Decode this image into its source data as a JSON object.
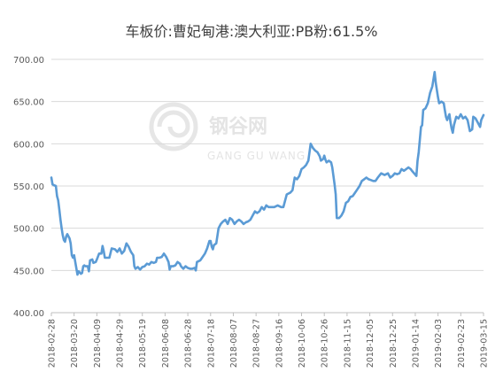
{
  "chart_data": {
    "type": "line",
    "title": "车板价:曹妃甸港:澳大利亚:PB粉:61.5%",
    "xlabel": "",
    "ylabel": "",
    "ylim": [
      400,
      700
    ],
    "yticks": [
      "400.00",
      "450.00",
      "500.00",
      "550.00",
      "600.00",
      "650.00",
      "700.00"
    ],
    "xticks": [
      "2018-02-28",
      "2018-03-20",
      "2018-04-09",
      "2018-04-29",
      "2018-05-19",
      "2018-06-08",
      "2018-06-28",
      "2018-07-18",
      "2018-08-07",
      "2018-08-27",
      "2018-09-16",
      "2018-10-06",
      "2018-10-26",
      "2018-11-15",
      "2018-12-05",
      "2018-12-25",
      "2019-01-14",
      "2019-02-03",
      "2019-02-23",
      "2019-03-15"
    ],
    "grid": "horizontal",
    "line_color": "#5b9bd5",
    "series": [
      {
        "values": [
          [
            "2018-02-28",
            560
          ],
          [
            "2018-03-01",
            552
          ],
          [
            "2018-03-02",
            551
          ],
          [
            "2018-03-04",
            550
          ],
          [
            "2018-03-05",
            538
          ],
          [
            "2018-03-06",
            533
          ],
          [
            "2018-03-07",
            522
          ],
          [
            "2018-03-08",
            510
          ],
          [
            "2018-03-09",
            500
          ],
          [
            "2018-03-10",
            492
          ],
          [
            "2018-03-11",
            486
          ],
          [
            "2018-03-12",
            484
          ],
          [
            "2018-03-13",
            490
          ],
          [
            "2018-03-14",
            493
          ],
          [
            "2018-03-16",
            488
          ],
          [
            "2018-03-17",
            482
          ],
          [
            "2018-03-18",
            468
          ],
          [
            "2018-03-19",
            465
          ],
          [
            "2018-03-20",
            468
          ],
          [
            "2018-03-21",
            460
          ],
          [
            "2018-03-22",
            452
          ],
          [
            "2018-03-23",
            445
          ],
          [
            "2018-03-24",
            449
          ],
          [
            "2018-03-26",
            446
          ],
          [
            "2018-03-27",
            447
          ],
          [
            "2018-03-28",
            455
          ],
          [
            "2018-03-29",
            456
          ],
          [
            "2018-03-30",
            455
          ],
          [
            "2018-04-01",
            455
          ],
          [
            "2018-04-02",
            449
          ],
          [
            "2018-04-03",
            462
          ],
          [
            "2018-04-05",
            463
          ],
          [
            "2018-04-06",
            459
          ],
          [
            "2018-04-08",
            460
          ],
          [
            "2018-04-09",
            463
          ],
          [
            "2018-04-11",
            470
          ],
          [
            "2018-04-13",
            470
          ],
          [
            "2018-04-14",
            479
          ],
          [
            "2018-04-15",
            473
          ],
          [
            "2018-04-16",
            465
          ],
          [
            "2018-04-20",
            465
          ],
          [
            "2018-04-22",
            476
          ],
          [
            "2018-04-25",
            475
          ],
          [
            "2018-04-27",
            472
          ],
          [
            "2018-04-29",
            476
          ],
          [
            "2018-05-01",
            470
          ],
          [
            "2018-05-03",
            473
          ],
          [
            "2018-05-05",
            482
          ],
          [
            "2018-05-07",
            478
          ],
          [
            "2018-05-09",
            472
          ],
          [
            "2018-05-11",
            468
          ],
          [
            "2018-05-12",
            455
          ],
          [
            "2018-05-13",
            452
          ],
          [
            "2018-05-15",
            454
          ],
          [
            "2018-05-17",
            451
          ],
          [
            "2018-05-19",
            454
          ],
          [
            "2018-05-21",
            455
          ],
          [
            "2018-05-23",
            458
          ],
          [
            "2018-05-25",
            457
          ],
          [
            "2018-05-27",
            460
          ],
          [
            "2018-05-29",
            459
          ],
          [
            "2018-05-31",
            460
          ],
          [
            "2018-06-01",
            465
          ],
          [
            "2018-06-03",
            465
          ],
          [
            "2018-06-05",
            466
          ],
          [
            "2018-06-07",
            470
          ],
          [
            "2018-06-09",
            466
          ],
          [
            "2018-06-11",
            460
          ],
          [
            "2018-06-12",
            451
          ],
          [
            "2018-06-13",
            455
          ],
          [
            "2018-06-15",
            455
          ],
          [
            "2018-06-17",
            456
          ],
          [
            "2018-06-19",
            460
          ],
          [
            "2018-06-21",
            458
          ],
          [
            "2018-06-22",
            455
          ],
          [
            "2018-06-24",
            452
          ],
          [
            "2018-06-26",
            455
          ],
          [
            "2018-06-28",
            453
          ],
          [
            "2018-06-30",
            452
          ],
          [
            "2018-07-02",
            452
          ],
          [
            "2018-07-04",
            453
          ],
          [
            "2018-07-05",
            450
          ],
          [
            "2018-07-06",
            460
          ],
          [
            "2018-07-09",
            462
          ],
          [
            "2018-07-11",
            466
          ],
          [
            "2018-07-13",
            470
          ],
          [
            "2018-07-15",
            476
          ],
          [
            "2018-07-17",
            485
          ],
          [
            "2018-07-18",
            485
          ],
          [
            "2018-07-19",
            478
          ],
          [
            "2018-07-20",
            475
          ],
          [
            "2018-07-21",
            480
          ],
          [
            "2018-07-23",
            482
          ],
          [
            "2018-07-25",
            500
          ],
          [
            "2018-07-27",
            505
          ],
          [
            "2018-07-29",
            508
          ],
          [
            "2018-07-31",
            510
          ],
          [
            "2018-08-02",
            505
          ],
          [
            "2018-08-04",
            512
          ],
          [
            "2018-08-06",
            510
          ],
          [
            "2018-08-08",
            505
          ],
          [
            "2018-08-10",
            508
          ],
          [
            "2018-08-12",
            510
          ],
          [
            "2018-08-14",
            508
          ],
          [
            "2018-08-16",
            505
          ],
          [
            "2018-08-18",
            507
          ],
          [
            "2018-08-20",
            508
          ],
          [
            "2018-08-22",
            510
          ],
          [
            "2018-08-24",
            515
          ],
          [
            "2018-08-26",
            520
          ],
          [
            "2018-08-28",
            518
          ],
          [
            "2018-08-30",
            520
          ],
          [
            "2018-09-01",
            525
          ],
          [
            "2018-09-03",
            522
          ],
          [
            "2018-09-05",
            527
          ],
          [
            "2018-09-07",
            525
          ],
          [
            "2018-09-09",
            525
          ],
          [
            "2018-09-12",
            525
          ],
          [
            "2018-09-15",
            527
          ],
          [
            "2018-09-18",
            525
          ],
          [
            "2018-09-20",
            525
          ],
          [
            "2018-09-23",
            540
          ],
          [
            "2018-09-26",
            542
          ],
          [
            "2018-09-28",
            545
          ],
          [
            "2018-09-30",
            560
          ],
          [
            "2018-10-02",
            558
          ],
          [
            "2018-10-04",
            562
          ],
          [
            "2018-10-06",
            570
          ],
          [
            "2018-10-08",
            572
          ],
          [
            "2018-10-10",
            575
          ],
          [
            "2018-10-12",
            580
          ],
          [
            "2018-10-13",
            590
          ],
          [
            "2018-10-14",
            600
          ],
          [
            "2018-10-16",
            595
          ],
          [
            "2018-10-18",
            592
          ],
          [
            "2018-10-20",
            590
          ],
          [
            "2018-10-22",
            585
          ],
          [
            "2018-10-23",
            580
          ],
          [
            "2018-10-25",
            582
          ],
          [
            "2018-10-26",
            586
          ],
          [
            "2018-10-27",
            581
          ],
          [
            "2018-10-28",
            578
          ],
          [
            "2018-10-30",
            580
          ],
          [
            "2018-11-01",
            578
          ],
          [
            "2018-11-02",
            572
          ],
          [
            "2018-11-04",
            552
          ],
          [
            "2018-11-05",
            540
          ],
          [
            "2018-11-06",
            512
          ],
          [
            "2018-11-08",
            512
          ],
          [
            "2018-11-10",
            515
          ],
          [
            "2018-11-12",
            520
          ],
          [
            "2018-11-14",
            530
          ],
          [
            "2018-11-16",
            532
          ],
          [
            "2018-11-18",
            537
          ],
          [
            "2018-11-20",
            538
          ],
          [
            "2018-11-22",
            542
          ],
          [
            "2018-11-24",
            546
          ],
          [
            "2018-11-26",
            550
          ],
          [
            "2018-11-28",
            556
          ],
          [
            "2018-11-30",
            558
          ],
          [
            "2018-12-02",
            560
          ],
          [
            "2018-12-04",
            558
          ],
          [
            "2018-12-06",
            557
          ],
          [
            "2018-12-08",
            556
          ],
          [
            "2018-12-10",
            556
          ],
          [
            "2018-12-12",
            560
          ],
          [
            "2018-12-15",
            565
          ],
          [
            "2018-12-18",
            563
          ],
          [
            "2018-12-21",
            565
          ],
          [
            "2018-12-23",
            560
          ],
          [
            "2018-12-25",
            562
          ],
          [
            "2018-12-27",
            565
          ],
          [
            "2018-12-29",
            564
          ],
          [
            "2018-12-31",
            565
          ],
          [
            "2019-01-02",
            570
          ],
          [
            "2019-01-04",
            568
          ],
          [
            "2019-01-06",
            570
          ],
          [
            "2019-01-08",
            572
          ],
          [
            "2019-01-10",
            570
          ],
          [
            "2019-01-11",
            568
          ],
          [
            "2019-01-13",
            565
          ],
          [
            "2019-01-15",
            562
          ],
          [
            "2019-01-16",
            580
          ],
          [
            "2019-01-17",
            590
          ],
          [
            "2019-01-18",
            605
          ],
          [
            "2019-01-19",
            620
          ],
          [
            "2019-01-20",
            622
          ],
          [
            "2019-01-21",
            640
          ],
          [
            "2019-01-23",
            642
          ],
          [
            "2019-01-25",
            648
          ],
          [
            "2019-01-27",
            660
          ],
          [
            "2019-01-29",
            668
          ],
          [
            "2019-01-31",
            685
          ],
          [
            "2019-02-01",
            672
          ],
          [
            "2019-02-03",
            655
          ],
          [
            "2019-02-04",
            648
          ],
          [
            "2019-02-06",
            650
          ],
          [
            "2019-02-08",
            648
          ],
          [
            "2019-02-09",
            640
          ],
          [
            "2019-02-10",
            632
          ],
          [
            "2019-02-11",
            628
          ],
          [
            "2019-02-13",
            635
          ],
          [
            "2019-02-14",
            625
          ],
          [
            "2019-02-15",
            618
          ],
          [
            "2019-02-16",
            613
          ],
          [
            "2019-02-17",
            622
          ],
          [
            "2019-02-19",
            632
          ],
          [
            "2019-02-21",
            630
          ],
          [
            "2019-02-23",
            635
          ],
          [
            "2019-02-25",
            630
          ],
          [
            "2019-02-27",
            632
          ],
          [
            "2019-03-01",
            628
          ],
          [
            "2019-03-03",
            615
          ],
          [
            "2019-03-05",
            617
          ],
          [
            "2019-03-06",
            632
          ],
          [
            "2019-03-08",
            630
          ],
          [
            "2019-03-10",
            625
          ],
          [
            "2019-03-12",
            620
          ],
          [
            "2019-03-13",
            628
          ],
          [
            "2019-03-15",
            634
          ]
        ]
      }
    ]
  },
  "watermark": {
    "text_cn": "钢谷网",
    "text_en": "GANG GU WANG"
  }
}
